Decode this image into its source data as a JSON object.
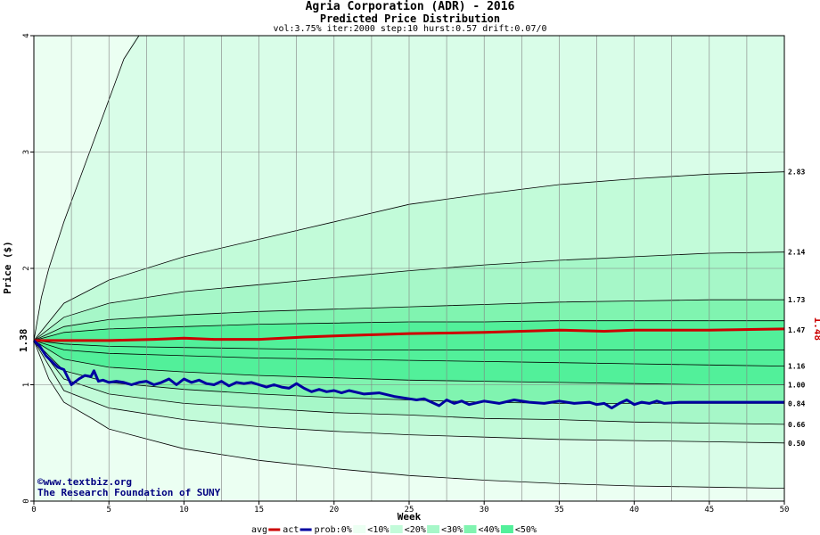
{
  "header": {
    "title": "Agria Corporation (ADR) - 2016",
    "subtitle": "Predicted Price Distribution",
    "params": "vol:3.75% iter:2000 step:10 hurst:0.57 drift:0.07/0"
  },
  "credits": {
    "line1": "©www.textbiz.org",
    "line2": "The Research Foundation of SUNY"
  },
  "colors": {
    "band_outer": "#ebfff2",
    "band_10": "#d9fde8",
    "band_20": "#c2fbd9",
    "band_30": "#a6f7c8",
    "band_40": "#80f4b0",
    "band_50": "#52f09a",
    "avg": "#cc0000",
    "actual": "#0000a0",
    "grid": "#808080"
  },
  "chart_data": {
    "type": "area",
    "title": "Predicted Price Distribution",
    "xlabel": "Week",
    "ylabel": "Price ($)",
    "xlim": [
      0,
      50
    ],
    "ylim": [
      0,
      4
    ],
    "x_ticks": [
      0,
      5,
      10,
      15,
      20,
      25,
      30,
      35,
      40,
      45,
      50
    ],
    "y_ticks": [
      0,
      1,
      2,
      3,
      4
    ],
    "start_price": 1.38,
    "start_price_label": "1.38",
    "current_price_label": "1.48",
    "right_labels": [
      "2.83",
      "2.14",
      "1.73",
      "1.47",
      "1.16",
      "1.00",
      "0.84",
      "0.66",
      "0.50"
    ],
    "percentile_curves": [
      {
        "name": "top",
        "points": [
          [
            0,
            1.38
          ],
          [
            0.5,
            1.75
          ],
          [
            1,
            2.0
          ],
          [
            2,
            2.4
          ],
          [
            3,
            2.75
          ],
          [
            4,
            3.1
          ],
          [
            5,
            3.45
          ],
          [
            6,
            3.8
          ],
          [
            7,
            4.05
          ]
        ]
      },
      {
        "name": "p10_upper",
        "points": [
          [
            0,
            1.38
          ],
          [
            2,
            1.7
          ],
          [
            5,
            1.9
          ],
          [
            10,
            2.1
          ],
          [
            15,
            2.25
          ],
          [
            20,
            2.4
          ],
          [
            25,
            2.55
          ],
          [
            30,
            2.64
          ],
          [
            35,
            2.72
          ],
          [
            40,
            2.77
          ],
          [
            45,
            2.81
          ],
          [
            50,
            2.83
          ]
        ]
      },
      {
        "name": "p20_upper",
        "points": [
          [
            0,
            1.38
          ],
          [
            2,
            1.58
          ],
          [
            5,
            1.7
          ],
          [
            10,
            1.8
          ],
          [
            15,
            1.86
          ],
          [
            20,
            1.92
          ],
          [
            25,
            1.98
          ],
          [
            30,
            2.03
          ],
          [
            35,
            2.07
          ],
          [
            40,
            2.1
          ],
          [
            45,
            2.13
          ],
          [
            50,
            2.14
          ]
        ]
      },
      {
        "name": "p30_upper",
        "points": [
          [
            0,
            1.38
          ],
          [
            2,
            1.5
          ],
          [
            5,
            1.56
          ],
          [
            10,
            1.6
          ],
          [
            15,
            1.63
          ],
          [
            20,
            1.65
          ],
          [
            25,
            1.67
          ],
          [
            30,
            1.69
          ],
          [
            35,
            1.71
          ],
          [
            40,
            1.72
          ],
          [
            45,
            1.73
          ],
          [
            50,
            1.73
          ]
        ]
      },
      {
        "name": "p40_upper",
        "points": [
          [
            0,
            1.38
          ],
          [
            2,
            1.45
          ],
          [
            5,
            1.48
          ],
          [
            10,
            1.5
          ],
          [
            15,
            1.52
          ],
          [
            20,
            1.53
          ],
          [
            25,
            1.54
          ],
          [
            30,
            1.54
          ],
          [
            35,
            1.55
          ],
          [
            40,
            1.55
          ],
          [
            45,
            1.55
          ],
          [
            50,
            1.55
          ]
        ]
      },
      {
        "name": "p40_lower",
        "points": [
          [
            0,
            1.38
          ],
          [
            2,
            1.35
          ],
          [
            5,
            1.33
          ],
          [
            10,
            1.32
          ],
          [
            15,
            1.31
          ],
          [
            20,
            1.3
          ],
          [
            25,
            1.3
          ],
          [
            30,
            1.3
          ],
          [
            35,
            1.3
          ],
          [
            40,
            1.3
          ],
          [
            45,
            1.3
          ],
          [
            50,
            1.3
          ]
        ]
      },
      {
        "name": "p30_lower",
        "points": [
          [
            0,
            1.38
          ],
          [
            2,
            1.3
          ],
          [
            5,
            1.27
          ],
          [
            10,
            1.25
          ],
          [
            15,
            1.23
          ],
          [
            20,
            1.22
          ],
          [
            25,
            1.21
          ],
          [
            30,
            1.2
          ],
          [
            35,
            1.19
          ],
          [
            40,
            1.18
          ],
          [
            45,
            1.17
          ],
          [
            50,
            1.16
          ]
        ]
      },
      {
        "name": "p20_lower",
        "points": [
          [
            0,
            1.38
          ],
          [
            2,
            1.22
          ],
          [
            5,
            1.15
          ],
          [
            10,
            1.11
          ],
          [
            15,
            1.08
          ],
          [
            20,
            1.06
          ],
          [
            25,
            1.04
          ],
          [
            30,
            1.03
          ],
          [
            35,
            1.02
          ],
          [
            40,
            1.01
          ],
          [
            45,
            1.0
          ],
          [
            50,
            1.0
          ]
        ]
      },
      {
        "name": "p10_lower",
        "points": [
          [
            0,
            1.38
          ],
          [
            2,
            1.12
          ],
          [
            5,
            1.02
          ],
          [
            10,
            0.96
          ],
          [
            15,
            0.92
          ],
          [
            20,
            0.89
          ],
          [
            25,
            0.87
          ],
          [
            30,
            0.85
          ],
          [
            35,
            0.84
          ],
          [
            40,
            0.84
          ],
          [
            45,
            0.84
          ],
          [
            50,
            0.84
          ]
        ]
      },
      {
        "name": "p10_lower2",
        "points": [
          [
            0,
            1.38
          ],
          [
            2,
            1.05
          ],
          [
            5,
            0.92
          ],
          [
            10,
            0.84
          ],
          [
            15,
            0.8
          ],
          [
            20,
            0.76
          ],
          [
            25,
            0.74
          ],
          [
            30,
            0.71
          ],
          [
            35,
            0.7
          ],
          [
            40,
            0.68
          ],
          [
            45,
            0.67
          ],
          [
            50,
            0.66
          ]
        ]
      },
      {
        "name": "p_lower3",
        "points": [
          [
            0,
            1.38
          ],
          [
            2,
            0.95
          ],
          [
            5,
            0.8
          ],
          [
            10,
            0.7
          ],
          [
            15,
            0.64
          ],
          [
            20,
            0.6
          ],
          [
            25,
            0.57
          ],
          [
            30,
            0.55
          ],
          [
            35,
            0.53
          ],
          [
            40,
            0.52
          ],
          [
            45,
            0.51
          ],
          [
            50,
            0.5
          ]
        ]
      },
      {
        "name": "bottom",
        "points": [
          [
            0,
            1.38
          ],
          [
            1,
            1.05
          ],
          [
            2,
            0.85
          ],
          [
            4,
            0.7
          ],
          [
            5,
            0.62
          ],
          [
            10,
            0.45
          ],
          [
            15,
            0.35
          ],
          [
            20,
            0.28
          ],
          [
            25,
            0.22
          ],
          [
            30,
            0.18
          ],
          [
            35,
            0.15
          ],
          [
            40,
            0.13
          ],
          [
            45,
            0.12
          ],
          [
            50,
            0.11
          ]
        ]
      }
    ],
    "series": [
      {
        "name": "avg",
        "points": [
          [
            0,
            1.38
          ],
          [
            2,
            1.38
          ],
          [
            5,
            1.38
          ],
          [
            8,
            1.39
          ],
          [
            10,
            1.4
          ],
          [
            12,
            1.39
          ],
          [
            15,
            1.39
          ],
          [
            18,
            1.41
          ],
          [
            20,
            1.42
          ],
          [
            25,
            1.44
          ],
          [
            30,
            1.45
          ],
          [
            35,
            1.47
          ],
          [
            38,
            1.46
          ],
          [
            40,
            1.47
          ],
          [
            45,
            1.47
          ],
          [
            50,
            1.48
          ]
        ]
      },
      {
        "name": "act",
        "points": [
          [
            0,
            1.38
          ],
          [
            0.4,
            1.33
          ],
          [
            0.8,
            1.25
          ],
          [
            1.2,
            1.2
          ],
          [
            1.6,
            1.15
          ],
          [
            2,
            1.13
          ],
          [
            2.5,
            1.0
          ],
          [
            3,
            1.05
          ],
          [
            3.4,
            1.08
          ],
          [
            3.8,
            1.07
          ],
          [
            4,
            1.12
          ],
          [
            4.3,
            1.03
          ],
          [
            4.6,
            1.04
          ],
          [
            5,
            1.02
          ],
          [
            5.5,
            1.03
          ],
          [
            6,
            1.02
          ],
          [
            6.5,
            1.0
          ],
          [
            7,
            1.02
          ],
          [
            7.5,
            1.03
          ],
          [
            8,
            1.0
          ],
          [
            8.5,
            1.02
          ],
          [
            9,
            1.05
          ],
          [
            9.5,
            1.0
          ],
          [
            10,
            1.05
          ],
          [
            10.5,
            1.02
          ],
          [
            11,
            1.04
          ],
          [
            11.5,
            1.01
          ],
          [
            12,
            1.0
          ],
          [
            12.5,
            1.03
          ],
          [
            13,
            0.99
          ],
          [
            13.5,
            1.02
          ],
          [
            14,
            1.01
          ],
          [
            14.5,
            1.02
          ],
          [
            15,
            1.0
          ],
          [
            15.5,
            0.98
          ],
          [
            16,
            1.0
          ],
          [
            16.5,
            0.98
          ],
          [
            17,
            0.97
          ],
          [
            17.5,
            1.01
          ],
          [
            18,
            0.97
          ],
          [
            18.5,
            0.94
          ],
          [
            19,
            0.96
          ],
          [
            19.5,
            0.94
          ],
          [
            20,
            0.95
          ],
          [
            20.5,
            0.93
          ],
          [
            21,
            0.95
          ],
          [
            22,
            0.92
          ],
          [
            23,
            0.93
          ],
          [
            24,
            0.9
          ],
          [
            25,
            0.88
          ],
          [
            25.5,
            0.87
          ],
          [
            26,
            0.88
          ],
          [
            26.5,
            0.85
          ],
          [
            27,
            0.82
          ],
          [
            27.5,
            0.87
          ],
          [
            28,
            0.84
          ],
          [
            28.5,
            0.86
          ],
          [
            29,
            0.83
          ],
          [
            30,
            0.86
          ],
          [
            31,
            0.84
          ],
          [
            32,
            0.87
          ],
          [
            33,
            0.85
          ],
          [
            34,
            0.84
          ],
          [
            35,
            0.86
          ],
          [
            36,
            0.84
          ],
          [
            37,
            0.85
          ],
          [
            37.5,
            0.83
          ],
          [
            38,
            0.84
          ],
          [
            38.5,
            0.8
          ],
          [
            39,
            0.84
          ],
          [
            39.5,
            0.87
          ],
          [
            40,
            0.83
          ],
          [
            40.5,
            0.85
          ],
          [
            41,
            0.84
          ],
          [
            41.5,
            0.86
          ],
          [
            42,
            0.84
          ],
          [
            43,
            0.85
          ],
          [
            45,
            0.85
          ],
          [
            47,
            0.85
          ],
          [
            50,
            0.85
          ]
        ]
      }
    ],
    "legend": {
      "avg_label": "avg",
      "act_label": "act",
      "prob_label": "prob:0%",
      "bands": [
        "<10%",
        "<20%",
        "<30%",
        "<40%",
        "<50%"
      ]
    }
  }
}
